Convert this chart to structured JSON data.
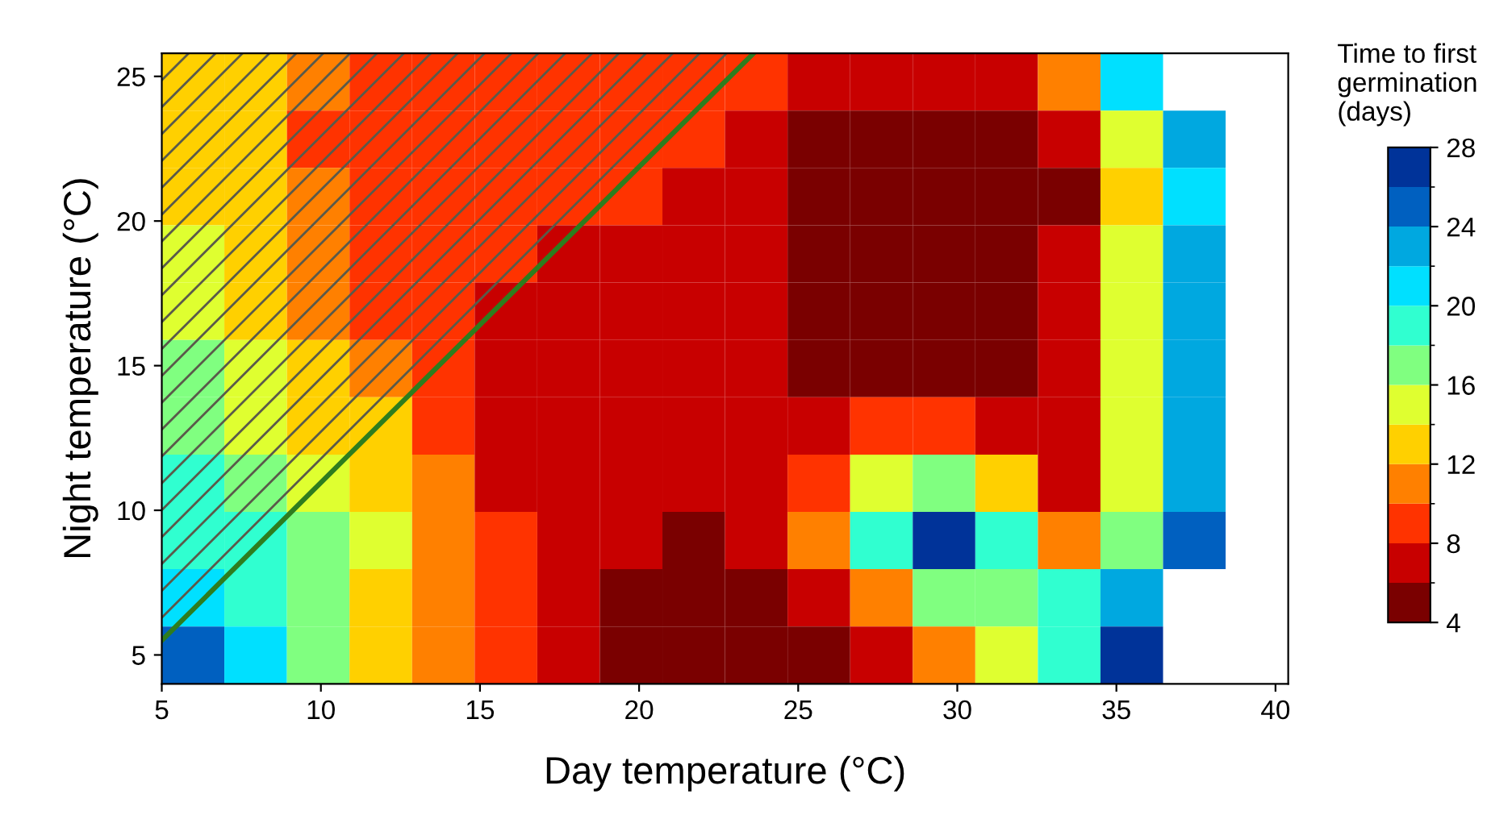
{
  "chart_data": {
    "type": "heatmap",
    "xlabel": "Day temperature (°C)",
    "ylabel": "Night temperature (°C)",
    "clabel": "Time to first\ngermination\n(days)",
    "xlim": [
      5,
      40.4
    ],
    "ylim": [
      4,
      25.8
    ],
    "xticks": [
      5,
      10,
      15,
      20,
      25,
      30,
      35,
      40
    ],
    "yticks": [
      5,
      10,
      15,
      20,
      25
    ],
    "clim": [
      4,
      28
    ],
    "cticks": [
      4,
      8,
      12,
      16,
      20,
      24,
      28
    ],
    "colors": [
      "#7a0000",
      "#c80000",
      "#ff3300",
      "#ff8000",
      "#ffd000",
      "#dfff30",
      "#80ff80",
      "#30ffd0",
      "#00e0ff",
      "#00a8e0",
      "#0060c0",
      "#003399"
    ],
    "cells": [
      [
        12,
        12,
        10,
        9,
        9,
        9,
        9,
        9,
        9,
        9,
        7,
        7,
        7,
        7,
        10,
        20,
        null,
        null
      ],
      [
        13,
        12,
        9,
        9,
        9,
        9,
        9,
        9,
        9,
        7,
        5,
        5,
        5,
        5,
        7,
        14,
        23,
        null
      ],
      [
        13,
        12,
        11,
        9,
        9,
        9,
        9,
        9,
        7,
        7,
        5,
        5,
        5,
        5,
        5,
        13,
        21,
        null
      ],
      [
        14,
        12,
        11,
        9,
        9,
        9,
        7,
        7,
        7,
        7,
        5,
        5,
        5,
        5,
        7,
        14,
        22,
        null
      ],
      [
        15,
        13,
        11,
        9,
        9,
        7,
        7,
        7,
        7,
        7,
        5,
        5,
        5,
        5,
        7,
        15,
        22,
        null
      ],
      [
        16,
        14,
        12,
        11,
        9,
        7,
        7,
        7,
        7,
        7,
        5,
        5,
        5,
        5,
        7,
        15,
        22,
        null
      ],
      [
        17,
        15,
        13,
        13,
        9,
        7,
        7,
        7,
        7,
        7,
        7,
        9,
        9,
        7,
        7,
        15,
        23,
        null
      ],
      [
        18,
        17,
        15,
        13,
        11,
        7,
        7,
        7,
        7,
        7,
        9,
        15,
        17,
        13,
        7,
        15,
        23,
        null
      ],
      [
        19,
        19,
        17,
        15,
        11,
        9,
        7,
        7,
        5,
        7,
        11,
        19,
        27,
        19,
        11,
        17,
        25,
        null
      ],
      [
        21,
        19,
        17,
        13,
        11,
        9,
        7,
        5,
        5,
        5,
        7,
        11,
        17,
        17,
        19,
        23,
        null,
        null
      ],
      [
        25,
        21,
        17,
        13,
        11,
        9,
        7,
        5,
        5,
        5,
        5,
        7,
        11,
        15,
        19,
        27,
        null,
        null
      ]
    ],
    "series": [
      {
        "type": "line",
        "x": [
          5,
          23.6
        ],
        "values": [
          5.5,
          25.8
        ],
        "lower": [
          5.5,
          25.8
        ],
        "upper": [
          25.8,
          25.8
        ],
        "color": "#2e7d1e"
      }
    ],
    "grid": false,
    "legend": false
  }
}
